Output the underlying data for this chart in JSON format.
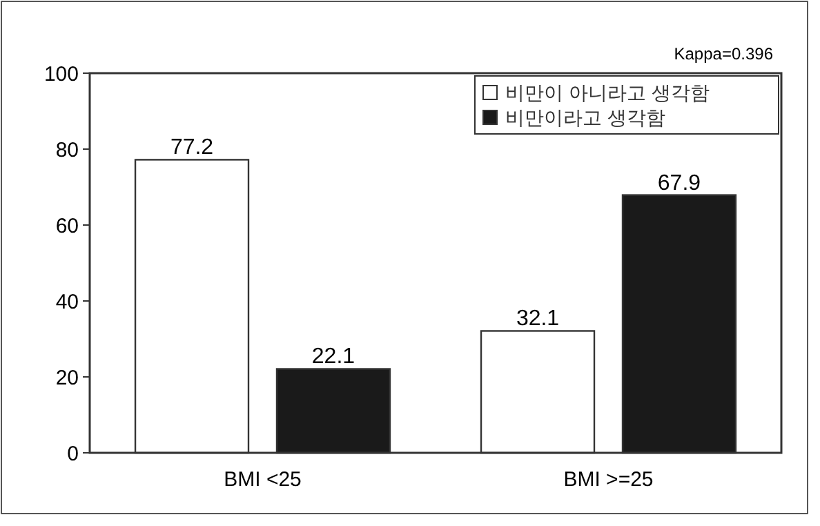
{
  "chart_data": {
    "type": "bar",
    "categories": [
      "BMI <25",
      "BMI >=25"
    ],
    "series": [
      {
        "name": "비만이 아니라고 생각함",
        "color": "#ffffff",
        "values": [
          77.2,
          32.1
        ]
      },
      {
        "name": "비만이라고 생각함",
        "color": "#1a1a1a",
        "values": [
          22.1,
          67.9
        ]
      }
    ],
    "ylim": [
      0,
      100
    ],
    "yticks": [
      0,
      20,
      40,
      60,
      80,
      100
    ],
    "data_labels": true,
    "legend": "top right",
    "grid": false,
    "annotations": [
      "Kappa=0.396"
    ]
  }
}
